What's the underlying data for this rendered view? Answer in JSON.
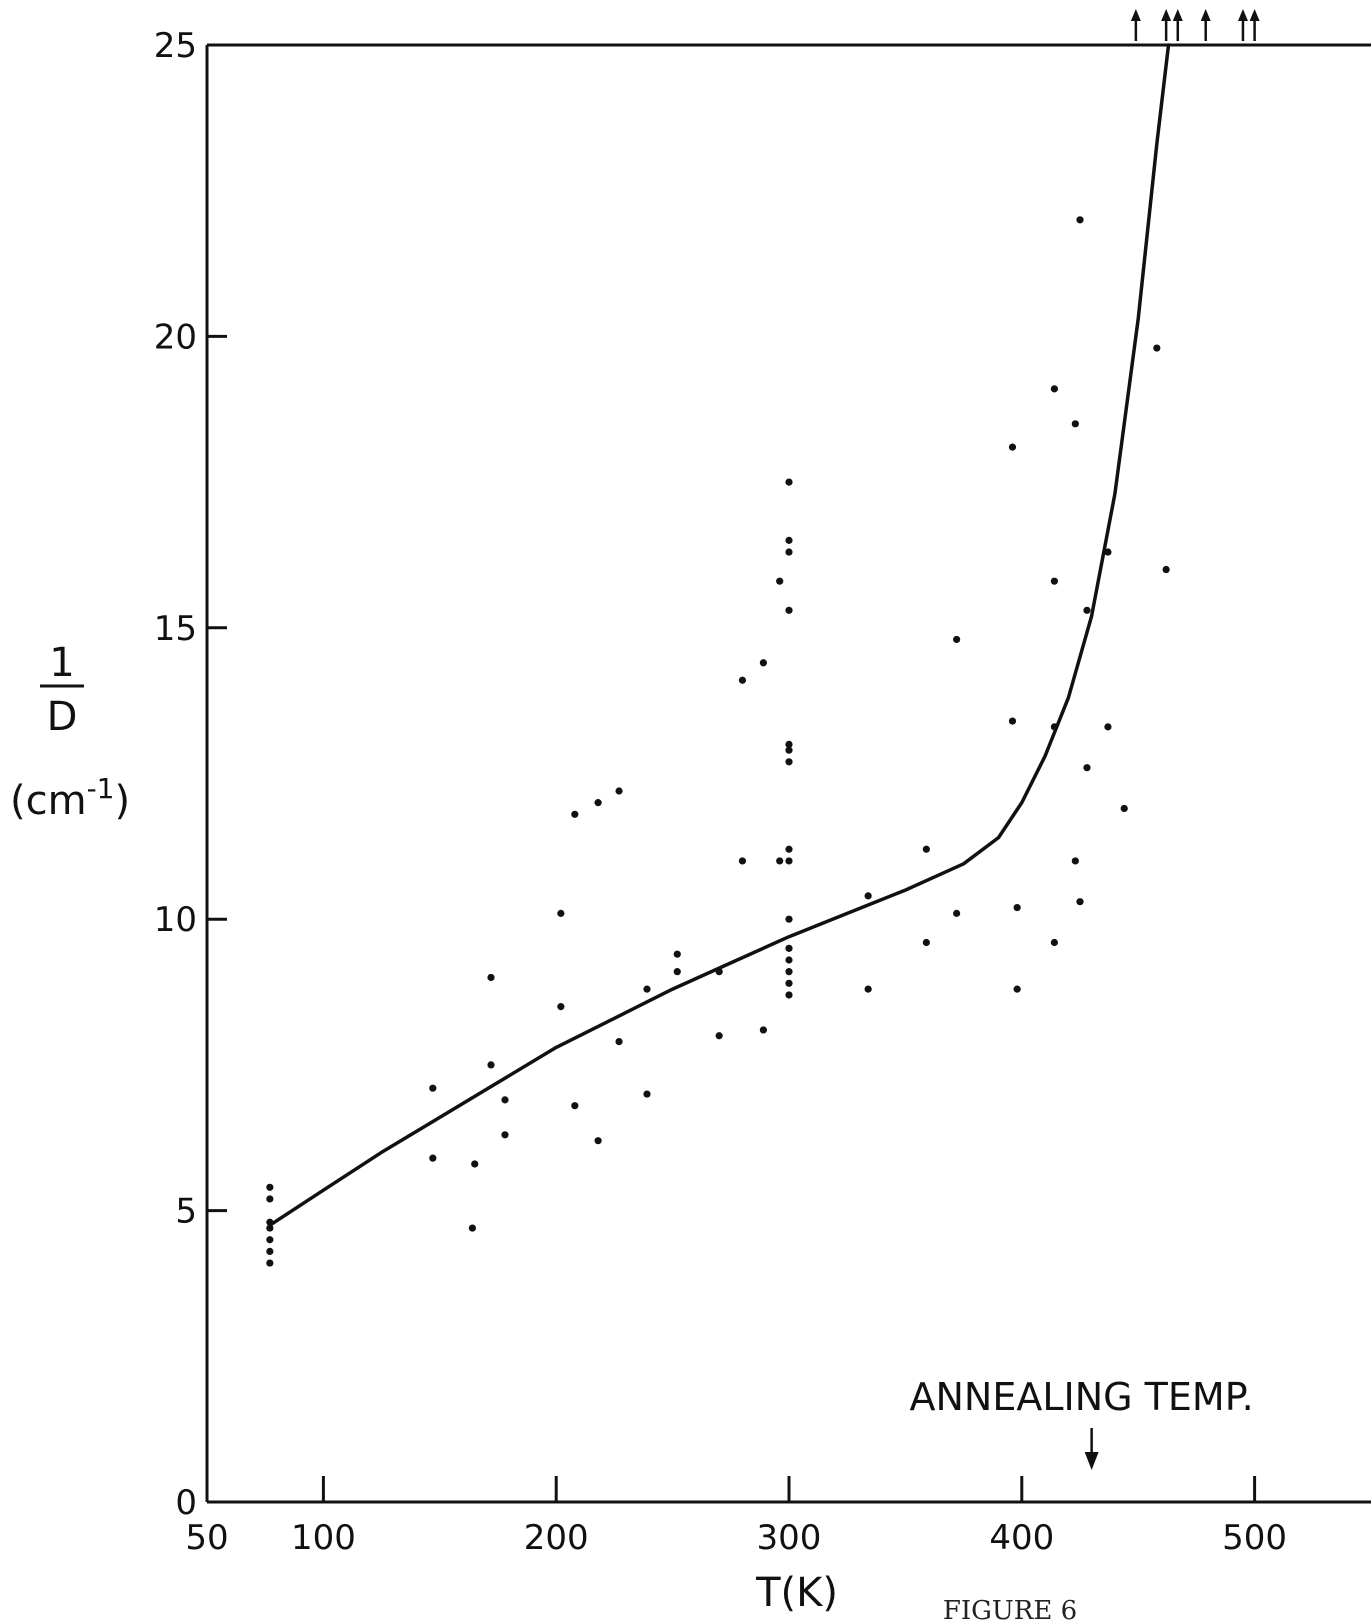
{
  "chart_data": {
    "type": "scatter",
    "title": "",
    "xlabel": "T(K)",
    "ylabel": {
      "numerator": "1",
      "denominator": "D",
      "unit": "(cm",
      "unit_exp": "-1",
      "unit_close": ")"
    },
    "xlim": [
      50,
      550
    ],
    "ylim": [
      0,
      25
    ],
    "x_ticks": [
      {
        "value": 50,
        "label": "50"
      },
      {
        "value": 100,
        "label": "100"
      },
      {
        "value": 200,
        "label": "200"
      },
      {
        "value": 300,
        "label": "300"
      },
      {
        "value": 400,
        "label": "400"
      },
      {
        "value": 500,
        "label": "500"
      }
    ],
    "y_ticks": [
      {
        "value": 0,
        "label": "0"
      },
      {
        "value": 5,
        "label": "5"
      },
      {
        "value": 10,
        "label": "10"
      },
      {
        "value": 15,
        "label": "15"
      },
      {
        "value": 20,
        "label": "20"
      },
      {
        "value": 25,
        "label": "25"
      }
    ],
    "grid": false,
    "points": [
      [
        77,
        4.1
      ],
      [
        77,
        4.3
      ],
      [
        77,
        4.5
      ],
      [
        77,
        4.7
      ],
      [
        77,
        4.8
      ],
      [
        77,
        5.2
      ],
      [
        77,
        5.4
      ],
      [
        147,
        5.9
      ],
      [
        147,
        7.1
      ],
      [
        164,
        4.7
      ],
      [
        165,
        5.8
      ],
      [
        172,
        7.5
      ],
      [
        172,
        9.0
      ],
      [
        178,
        6.3
      ],
      [
        178,
        6.9
      ],
      [
        202,
        8.5
      ],
      [
        202,
        10.1
      ],
      [
        208,
        6.8
      ],
      [
        208,
        11.8
      ],
      [
        218,
        6.2
      ],
      [
        218,
        12.0
      ],
      [
        227,
        7.9
      ],
      [
        227,
        12.2
      ],
      [
        239,
        7.0
      ],
      [
        239,
        8.8
      ],
      [
        252,
        9.1
      ],
      [
        252,
        9.4
      ],
      [
        270,
        8.0
      ],
      [
        270,
        9.1
      ],
      [
        280,
        11.0
      ],
      [
        280,
        14.1
      ],
      [
        289,
        8.1
      ],
      [
        289,
        14.4
      ],
      [
        296,
        11.0
      ],
      [
        296,
        15.8
      ],
      [
        300,
        8.7
      ],
      [
        300,
        8.9
      ],
      [
        300,
        9.1
      ],
      [
        300,
        9.3
      ],
      [
        300,
        9.5
      ],
      [
        300,
        10.0
      ],
      [
        300,
        11.0
      ],
      [
        300,
        11.2
      ],
      [
        300,
        12.7
      ],
      [
        300,
        12.9
      ],
      [
        300,
        13.0
      ],
      [
        300,
        15.3
      ],
      [
        300,
        16.3
      ],
      [
        300,
        16.5
      ],
      [
        300,
        17.5
      ],
      [
        334,
        8.8
      ],
      [
        334,
        10.4
      ],
      [
        359,
        9.6
      ],
      [
        359,
        11.2
      ],
      [
        372,
        10.1
      ],
      [
        372,
        14.8
      ],
      [
        396,
        13.4
      ],
      [
        396,
        18.1
      ],
      [
        398,
        8.8
      ],
      [
        398,
        10.2
      ],
      [
        414,
        9.6
      ],
      [
        414,
        13.3
      ],
      [
        414,
        15.8
      ],
      [
        414,
        19.1
      ],
      [
        423,
        11.0
      ],
      [
        423,
        18.5
      ],
      [
        425,
        10.3
      ],
      [
        425,
        22.0
      ],
      [
        428,
        12.6
      ],
      [
        428,
        15.3
      ],
      [
        437,
        13.3
      ],
      [
        437,
        16.3
      ],
      [
        444,
        11.9
      ],
      [
        458,
        19.8
      ],
      [
        462,
        16.0
      ]
    ],
    "offscale_x": [
      449,
      462,
      467,
      479,
      495,
      500
    ],
    "curve": [
      [
        77,
        4.75
      ],
      [
        100,
        5.35
      ],
      [
        125,
        6.0
      ],
      [
        150,
        6.6
      ],
      [
        175,
        7.2
      ],
      [
        200,
        7.8
      ],
      [
        225,
        8.3
      ],
      [
        250,
        8.8
      ],
      [
        275,
        9.25
      ],
      [
        300,
        9.7
      ],
      [
        325,
        10.1
      ],
      [
        350,
        10.5
      ],
      [
        375,
        10.95
      ],
      [
        390,
        11.4
      ],
      [
        400,
        12.0
      ],
      [
        410,
        12.8
      ],
      [
        420,
        13.8
      ],
      [
        430,
        15.2
      ],
      [
        440,
        17.3
      ],
      [
        450,
        20.3
      ],
      [
        458,
        23.3
      ],
      [
        463,
        25.0
      ]
    ],
    "annotation": {
      "text": "ANNEALING TEMP.",
      "x": 430
    },
    "legend": "none"
  },
  "figure": {
    "caption": "FIGURE 6"
  }
}
